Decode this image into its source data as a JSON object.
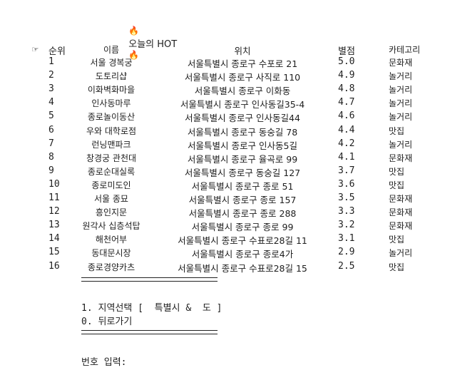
{
  "title": {
    "text": "오늘의 HOT",
    "icon": "fire-icon",
    "glyph": "🔥"
  },
  "pointer": {
    "icon": "pointing-hand-icon",
    "glyph": "☞"
  },
  "headers": {
    "rank": "순위",
    "name": "이름",
    "location": "위치",
    "rating": "별점",
    "category": "카테고리"
  },
  "rows": [
    {
      "rank": "1",
      "name": "서울 경복궁",
      "location": "서울특별시 종로구 수포로 21",
      "rating": "5.0",
      "category": "문화재"
    },
    {
      "rank": "2",
      "name": "도토리샵",
      "location": "서울특별시 종로구 사직로 110",
      "rating": "4.9",
      "category": "놀거리"
    },
    {
      "rank": "3",
      "name": "이화벽화마을",
      "location": "서울특별시 종로구 이화동",
      "rating": "4.8",
      "category": "놀거리"
    },
    {
      "rank": "4",
      "name": "인사동마루",
      "location": "서울특별시 종로구 인사동길35-4",
      "rating": "4.7",
      "category": "놀거리"
    },
    {
      "rank": "5",
      "name": "종로놀이동산",
      "location": "서울특별시 종로구 인사동길44",
      "rating": "4.6",
      "category": "놀거리"
    },
    {
      "rank": "6",
      "name": "우와 대학로점",
      "location": "서울특별시 종로구 동숭길 78",
      "rating": "4.4",
      "category": "맛집"
    },
    {
      "rank": "7",
      "name": "런닝맨파크",
      "location": "서울특별시 종로구 인사동5길",
      "rating": "4.2",
      "category": "놀거리"
    },
    {
      "rank": "8",
      "name": "창경궁 관천대",
      "location": "서울특별시 종로구 율곡로 99",
      "rating": "4.1",
      "category": "문화재"
    },
    {
      "rank": "9",
      "name": "종로순대실록",
      "location": "서울특별시 종로구 동숭길 127",
      "rating": "3.7",
      "category": "맛집"
    },
    {
      "rank": "10",
      "name": "종로미도인",
      "location": "서울특별시 종로구 종로 51",
      "rating": "3.6",
      "category": "맛집"
    },
    {
      "rank": "11",
      "name": "서울 종묘",
      "location": "서울특별시 종로구 종로 157",
      "rating": "3.5",
      "category": "문화재"
    },
    {
      "rank": "12",
      "name": "흥인지문",
      "location": "서울특별시 종로구 종로 288",
      "rating": "3.3",
      "category": "문화재"
    },
    {
      "rank": "13",
      "name": "원각사 십층석탑",
      "location": "서울특별시 종로구 종로 99",
      "rating": "3.2",
      "category": "문화재"
    },
    {
      "rank": "14",
      "name": "해천어부",
      "location": "서울특별시 종로구 수표로28길 11",
      "rating": "3.1",
      "category": "맛집"
    },
    {
      "rank": "15",
      "name": "동대문시장",
      "location": "서울특별시 종로구 종로4가",
      "rating": "2.9",
      "category": "놀거리"
    },
    {
      "rank": "16",
      "name": "종로경양카츠",
      "location": "서울특별시 종로구 수표로28길 15",
      "rating": "2.5",
      "category": "맛집"
    }
  ],
  "menu": {
    "item1": "1. 지역선택 [  특별시 &  도 ]",
    "item0": "0. 뒤로가기"
  },
  "prompt": "번호 입력:"
}
